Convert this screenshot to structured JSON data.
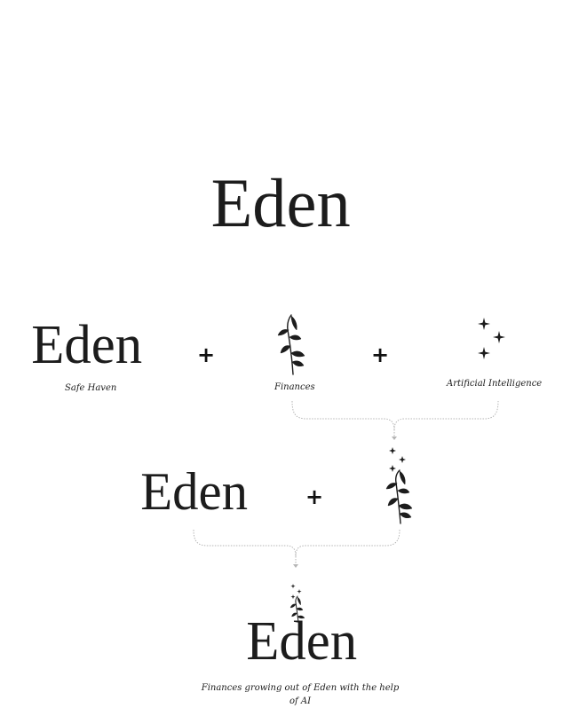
{
  "hero": {
    "wordmark": "Eden"
  },
  "components": [
    {
      "wordmark": "Eden",
      "caption": "Safe Haven"
    },
    {
      "caption": "Finances",
      "icon": "branch-icon"
    },
    {
      "caption": "Artificial Intelligence",
      "icon": "sparkles-icon"
    }
  ],
  "operators": {
    "plus": "+"
  },
  "combined": {
    "wordmark": "Eden",
    "icon": "sparkle-branch-icon"
  },
  "result": {
    "wordmark": "Eden",
    "icon": "sparkle-branch-icon",
    "caption": "Finances growing out of Eden with the help of AI"
  },
  "colors": {
    "ink": "#1c1c1c",
    "connector": "#b5b5b5"
  }
}
